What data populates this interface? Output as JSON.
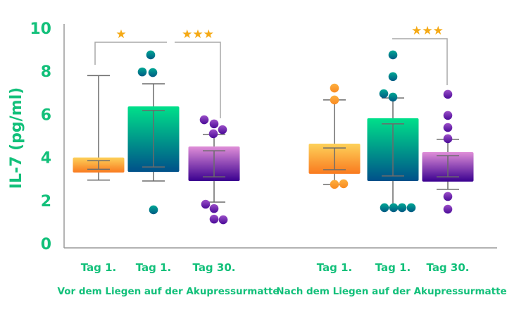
{
  "chart_data": {
    "type": "box",
    "ylabel": "IL-7 (pg/ml)",
    "ylim": [
      0,
      10
    ],
    "yticks": [
      "0",
      "2",
      "4",
      "6",
      "8",
      "10"
    ],
    "grid": false,
    "colors": {
      "text": "#12c07a",
      "axis": "#9a9a9a",
      "whisker": "#6b6b6b",
      "star": "#f5a914"
    },
    "groups": [
      {
        "label": "Vor dem Liegen auf der Akupressurmatte",
        "boxes": [
          {
            "label": "Tag 1.",
            "style": "orange",
            "q1": 3.3,
            "q3": 4.0,
            "lines": [
              3.45,
              3.85
            ],
            "whisker_low": 2.95,
            "whisker_high": 7.8,
            "points": []
          },
          {
            "label": "Tag 1.",
            "style": "teal",
            "q1": 3.33,
            "q3": 6.37,
            "lines": [
              3.56,
              6.18
            ],
            "whisker_low": 2.91,
            "whisker_high": 7.42,
            "points": [
              8.76,
              7.97,
              7.94,
              1.57
            ]
          },
          {
            "label": "Tag 30.",
            "style": "purple",
            "q1": 2.91,
            "q3": 4.51,
            "lines": [
              3.1,
              4.31
            ],
            "whisker_low": 1.93,
            "whisker_high": 5.07,
            "points": [
              5.75,
              5.56,
              5.29,
              5.1,
              1.83,
              1.63,
              1.14,
              1.11
            ]
          }
        ],
        "significance": [
          {
            "from": 0,
            "to": 1,
            "stars": "★"
          },
          {
            "from": 1,
            "to": 2,
            "stars": "★★★"
          }
        ]
      },
      {
        "label": "Nach dem Liegen auf der Akupressurmatte",
        "boxes": [
          {
            "label": "Tag 1.",
            "style": "orange",
            "q1": 3.24,
            "q3": 4.64,
            "lines": [
              3.43,
              4.44
            ],
            "whisker_low": 2.75,
            "whisker_high": 6.67,
            "points": [
              7.22,
              6.67,
              2.75,
              2.78
            ]
          },
          {
            "label": "Tag 1.",
            "style": "teal",
            "q1": 2.91,
            "q3": 5.82,
            "lines": [
              3.14,
              5.56
            ],
            "whisker_low": 1.67,
            "whisker_high": 6.76,
            "points": [
              8.76,
              7.75,
              6.96,
              6.8,
              1.67,
              1.67,
              1.67,
              1.67
            ]
          },
          {
            "label": "Tag 30.",
            "style": "purple",
            "q1": 2.88,
            "q3": 4.25,
            "lines": [
              3.1,
              4.08
            ],
            "whisker_low": 2.52,
            "whisker_high": 4.84,
            "points": [
              6.93,
              5.95,
              5.39,
              4.87,
              2.19,
              1.6
            ]
          }
        ],
        "significance": [
          {
            "from": 1,
            "to": 2,
            "stars": "★★★"
          }
        ]
      }
    ]
  }
}
